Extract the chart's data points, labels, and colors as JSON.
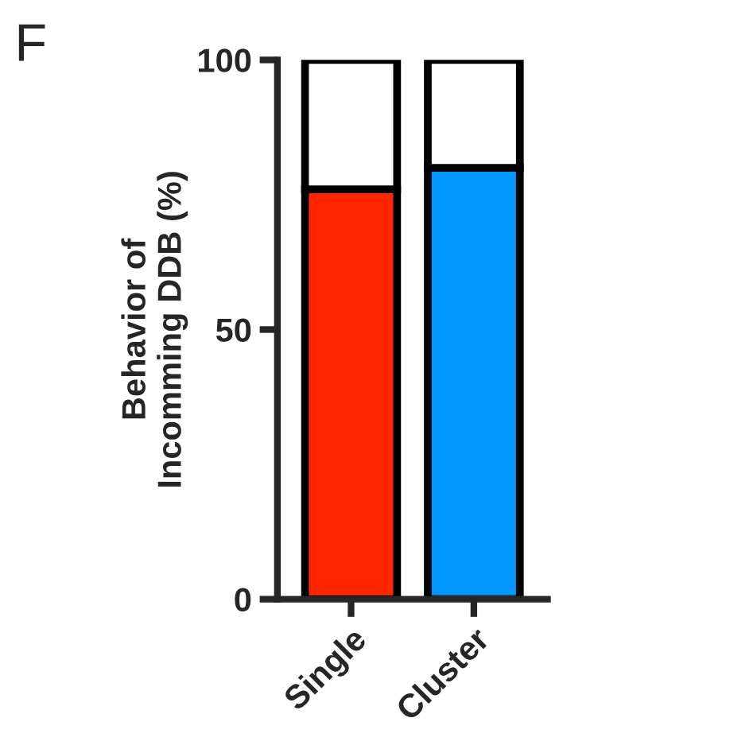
{
  "chart_data": {
    "type": "bar",
    "stacked": true,
    "title": "F",
    "ylabel": "Behavior of\nIncomming DDB (%)",
    "categories": [
      "Single",
      "Cluster"
    ],
    "series": [
      {
        "colors": [
          "#ff2600",
          "#0096ff"
        ],
        "values": [
          76,
          80
        ]
      },
      {
        "color": "#ffffff",
        "values": [
          24,
          20
        ]
      }
    ],
    "ylim": [
      0,
      100
    ],
    "yticks": [
      0,
      50,
      100
    ],
    "grid": false,
    "legend": false
  }
}
